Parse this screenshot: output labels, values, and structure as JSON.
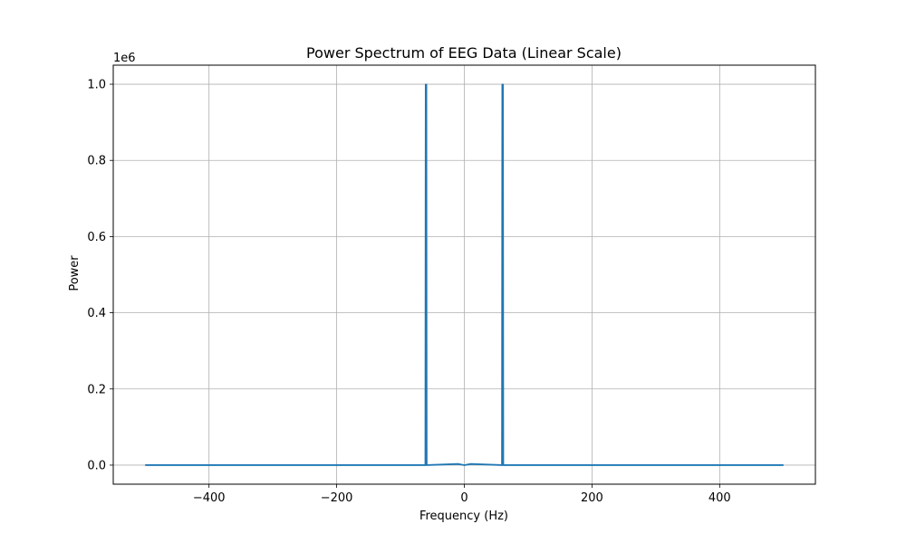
{
  "chart_data": {
    "type": "line",
    "title": "Power Spectrum of EEG Data (Linear Scale)",
    "xlabel": "Frequency (Hz)",
    "ylabel": "Power",
    "y_offset_label": "1e6",
    "xlim": [
      -550,
      550
    ],
    "ylim": [
      -0.05,
      1.05
    ],
    "x_ticks": [
      -400,
      -200,
      0,
      200,
      400
    ],
    "x_tick_labels": [
      "−400",
      "−200",
      "0",
      "200",
      "400"
    ],
    "y_ticks": [
      0.0,
      0.2,
      0.4,
      0.6,
      0.8,
      1.0
    ],
    "y_tick_labels": [
      "0.0",
      "0.2",
      "0.4",
      "0.6",
      "0.8",
      "1.0"
    ],
    "grid": true,
    "series": [
      {
        "color": "#1f77b4",
        "x": [
          -500,
          -61,
          -60.5,
          -60,
          -59.5,
          -59,
          -10,
          0,
          10,
          59,
          59.5,
          60,
          60.5,
          61,
          500
        ],
        "values": [
          0,
          0,
          0.999,
          0.999,
          0.999,
          0,
          0.003,
          0,
          0.003,
          0,
          0.999,
          0.999,
          0.999,
          0,
          0
        ]
      }
    ]
  }
}
